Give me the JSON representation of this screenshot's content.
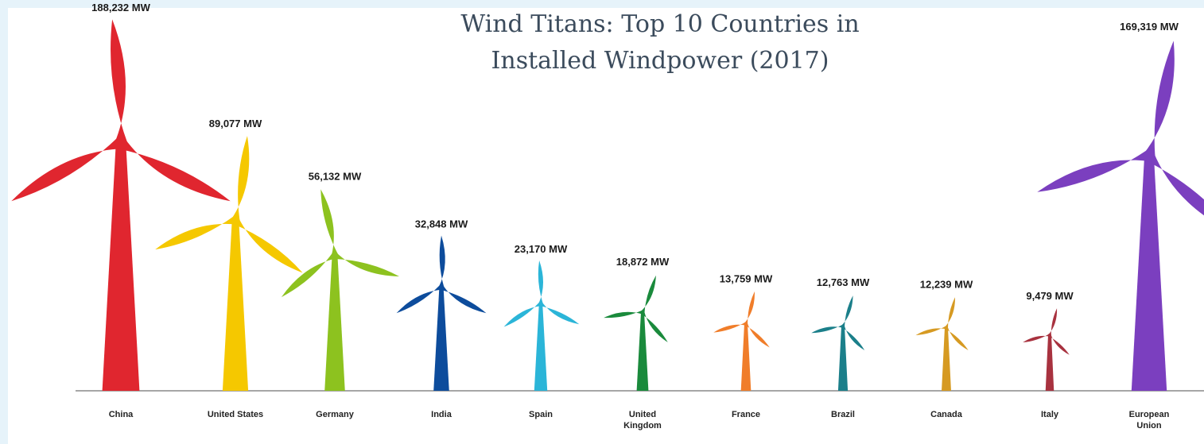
{
  "chart_data": {
    "type": "turbine",
    "title": "Wind Titans: Top 10 Countries in Installed Windpower (2017)",
    "categories": [
      "China",
      "United States",
      "Germany",
      "India",
      "Spain",
      "United Kingdom",
      "France",
      "Brazil",
      "Canada",
      "Italy",
      "European Union"
    ],
    "values": [
      188232,
      89077,
      56132,
      32848,
      23170,
      18872,
      13759,
      12763,
      12239,
      9479,
      169319
    ],
    "value_labels": [
      "188,232 MW",
      "89,077 MW",
      "56,132 MW",
      "32,848 MW",
      "23,170 MW",
      "18,872 MW",
      "13,759 MW",
      "12,763 MW",
      "12,239 MW",
      "9,479 MW",
      "169,319 MW"
    ],
    "colors": [
      "#e0262f",
      "#f5c800",
      "#8dc21f",
      "#0d4c9c",
      "#2bb5d8",
      "#1a8a3c",
      "#f07d2a",
      "#1b7f8a",
      "#d69a22",
      "#a8323f",
      "#7b3fbf"
    ]
  }
}
